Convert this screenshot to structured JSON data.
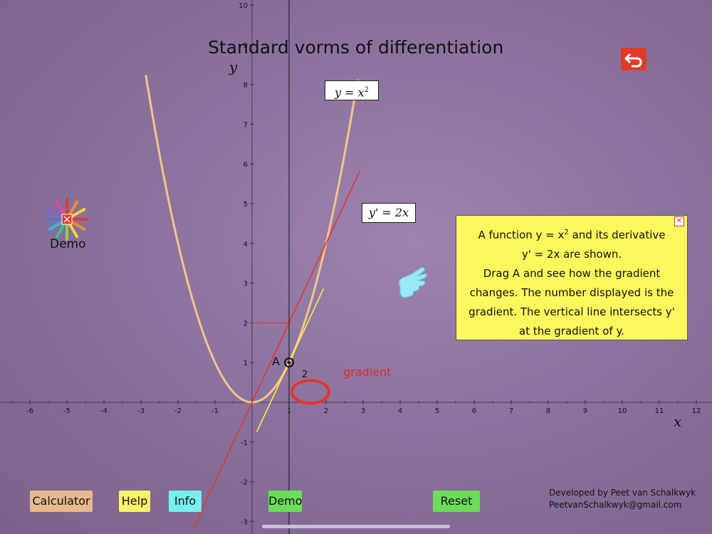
{
  "app": {
    "title": "Standard vorms of differentiation",
    "colors": {
      "background": "#8c739f",
      "parabola": "#f4c48a",
      "derivative": "#e8342a",
      "tangent": "#f6f04a",
      "panel": "#fbf75d"
    }
  },
  "graph": {
    "x_label": "x",
    "y_label": "y",
    "x_ticks": [
      "-6",
      "-5",
      "-4",
      "-3",
      "-2",
      "-1",
      "1",
      "2",
      "3",
      "4",
      "5",
      "6",
      "7",
      "8",
      "9",
      "10",
      "11",
      "12"
    ],
    "y_ticks": [
      "-3",
      "-2",
      "-1",
      "1",
      "2",
      "3",
      "4",
      "5",
      "6",
      "7",
      "8",
      "9",
      "10"
    ],
    "point_label": "A",
    "point_x": 1,
    "gradient_value": "2",
    "gradient_label": "gradient",
    "equation_y": {
      "lhs": "y = x",
      "exp": "2"
    },
    "equation_derivative": "y' = 2x"
  },
  "info_panel": {
    "line1a": "A function y = x",
    "line1exp": "2",
    "line1b": " and its derivative",
    "line2": "y' = 2x are shown.",
    "line3": "Drag A and see how the gradient",
    "line4": "changes. The number displayed is the",
    "line5": "gradient. The vertical line intersects y'",
    "line6": "at the gradient of y.",
    "close_icon": "close-icon"
  },
  "demo": {
    "label": "Demo",
    "icon": "color-wheel-icon"
  },
  "buttons": {
    "calculator": "Calculator",
    "help": "Help",
    "info": "Info",
    "demo": "Demo",
    "reset": "Reset"
  },
  "back_icon": "back-arrow-icon",
  "hand_icon": "pointing-hand-icon",
  "credits": {
    "line1": "Developed by Peet van Schalkwyk",
    "line2": "PeetvanSchalkwyk@gmail.com"
  }
}
